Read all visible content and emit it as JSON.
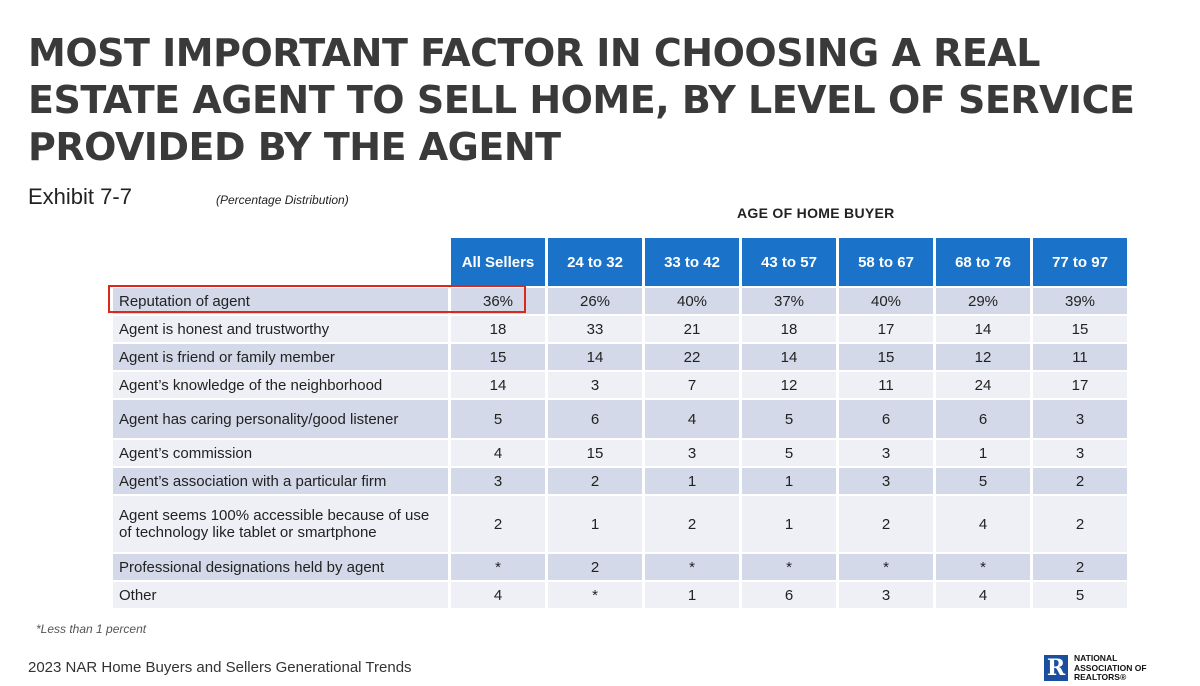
{
  "title": "MOST IMPORTANT FACTOR IN CHOOSING A REAL ESTATE AGENT TO SELL HOME, BY LEVEL OF SERVICE PROVIDED BY THE AGENT",
  "exhibit": "Exhibit 7-7",
  "subtitle": "(Percentage Distribution)",
  "group_header": "AGE OF HOME BUYER",
  "columns": [
    "All Sellers",
    "24 to 32",
    "33 to 42",
    "43 to 57",
    "58 to 67",
    "68 to 76",
    "77 to 97"
  ],
  "rows": [
    {
      "factor": "Reputation of agent",
      "values": [
        "36%",
        "26%",
        "40%",
        "37%",
        "40%",
        "29%",
        "39%"
      ]
    },
    {
      "factor": "Agent is honest and trustworthy",
      "values": [
        "18",
        "33",
        "21",
        "18",
        "17",
        "14",
        "15"
      ]
    },
    {
      "factor": "Agent is friend or family member",
      "values": [
        "15",
        "14",
        "22",
        "14",
        "15",
        "12",
        "11"
      ]
    },
    {
      "factor": "Agent’s knowledge of the neighborhood",
      "values": [
        "14",
        "3",
        "7",
        "12",
        "11",
        "24",
        "17"
      ]
    },
    {
      "factor": "Agent has caring personality/good listener",
      "values": [
        "5",
        "6",
        "4",
        "5",
        "6",
        "6",
        "3"
      ]
    },
    {
      "factor": "Agent’s commission",
      "values": [
        "4",
        "15",
        "3",
        "5",
        "3",
        "1",
        "3"
      ]
    },
    {
      "factor": "Agent’s association with a particular firm",
      "values": [
        "3",
        "2",
        "1",
        "1",
        "3",
        "5",
        "2"
      ]
    },
    {
      "factor": "Agent seems 100% accessible because of use of technology like tablet or smartphone",
      "values": [
        "2",
        "1",
        "2",
        "1",
        "2",
        "4",
        "2"
      ]
    },
    {
      "factor": "Professional designations held by agent",
      "values": [
        "*",
        "2",
        "*",
        "*",
        "*",
        "*",
        "2"
      ]
    },
    {
      "factor": "Other",
      "values": [
        "4",
        "*",
        "1",
        "6",
        "3",
        "4",
        "5"
      ]
    }
  ],
  "footnote": "*Less than 1 percent",
  "source": "2023 NAR Home Buyers and Sellers Generational Trends",
  "logo": {
    "mark": "R",
    "line1": "NATIONAL",
    "line2": "ASSOCIATION OF",
    "line3": "REALTORS®"
  },
  "colors": {
    "header_blue": "#1a73c8",
    "row_dark": "#d3d9e8",
    "row_light": "#eef0f5",
    "highlight_red": "#d9291c"
  }
}
